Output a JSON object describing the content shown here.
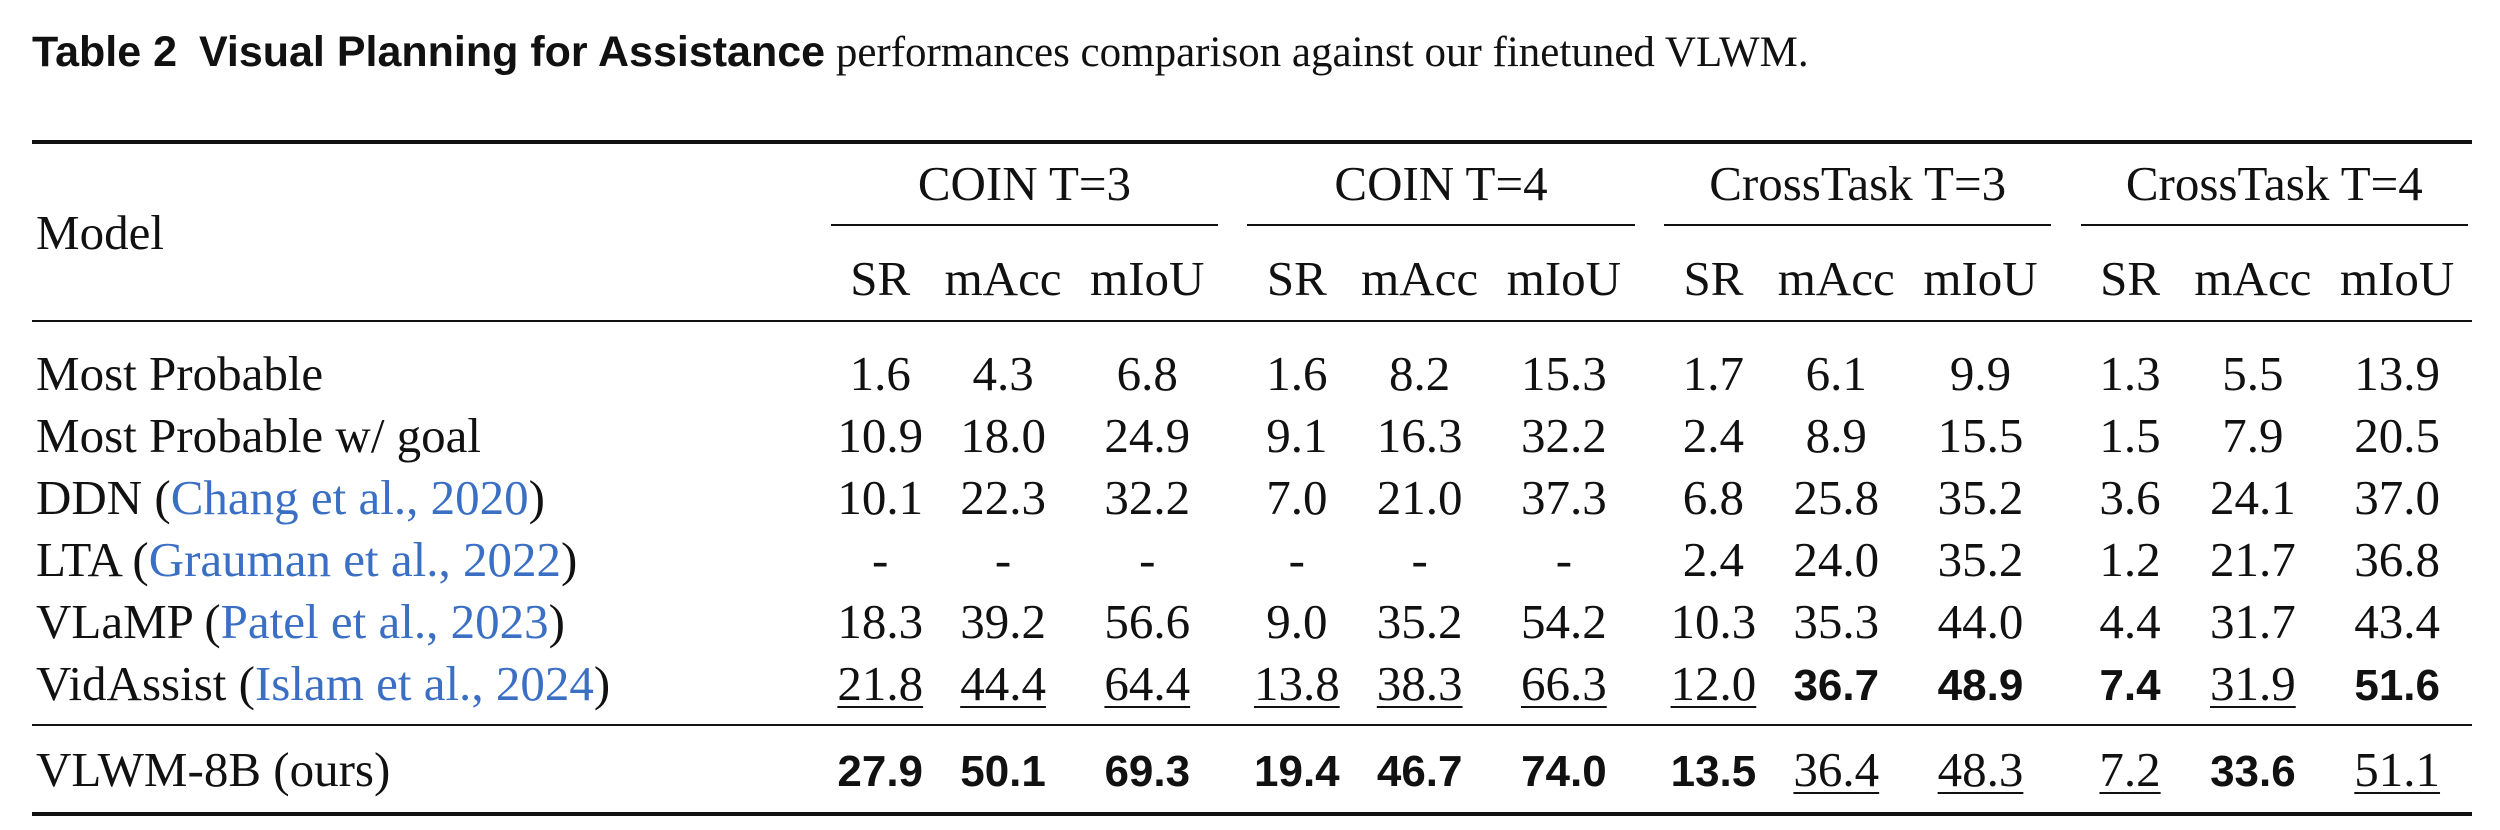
{
  "caption": {
    "label": "Table 2",
    "title": "Visual Planning for Assistance",
    "text": "performances comparison against our finetuned VLWM."
  },
  "header": {
    "model": "Model",
    "groups": [
      "COIN T=3",
      "COIN T=4",
      "CrossTask T=3",
      "CrossTask T=4"
    ],
    "metrics": [
      "SR",
      "mAcc",
      "mIoU",
      "SR",
      "mAcc",
      "mIoU",
      "SR",
      "mAcc",
      "mIoU",
      "SR",
      "mAcc",
      "mIoU"
    ]
  },
  "rows": [
    {
      "model": "Most Probable",
      "values": [
        "1.6",
        "4.3",
        "6.8",
        "1.6",
        "8.2",
        "15.3",
        "1.7",
        "6.1",
        "9.9",
        "1.3",
        "5.5",
        "13.9"
      ]
    },
    {
      "model": "Most Probable w/ goal",
      "values": [
        "10.9",
        "18.0",
        "24.9",
        "9.1",
        "16.3",
        "32.2",
        "2.4",
        "8.9",
        "15.5",
        "1.5",
        "7.9",
        "20.5"
      ]
    },
    {
      "model": "DDN",
      "cite_authors": "Chang et al.",
      "cite_year": "2020",
      "values": [
        "10.1",
        "22.3",
        "32.2",
        "7.0",
        "21.0",
        "37.3",
        "6.8",
        "25.8",
        "35.2",
        "3.6",
        "24.1",
        "37.0"
      ]
    },
    {
      "model": "LTA",
      "cite_authors": "Grauman et al.",
      "cite_year": "2022",
      "values": [
        "-",
        "-",
        "-",
        "-",
        "-",
        "-",
        "2.4",
        "24.0",
        "35.2",
        "1.2",
        "21.7",
        "36.8"
      ]
    },
    {
      "model": "VLaMP",
      "cite_authors": "Patel et al.",
      "cite_year": "2023",
      "values": [
        "18.3",
        "39.2",
        "56.6",
        "9.0",
        "35.2",
        "54.2",
        "10.3",
        "35.3",
        "44.0",
        "4.4",
        "31.7",
        "43.4"
      ]
    },
    {
      "model": "VidAssist",
      "cite_authors": "Islam et al.",
      "cite_year": "2024",
      "values": [
        "21.8",
        "44.4",
        "64.4",
        "13.8",
        "38.3",
        "66.3",
        "12.0",
        "36.7",
        "48.9",
        "7.4",
        "31.9",
        "51.6"
      ]
    },
    {
      "model": "VLWM-8B (ours)",
      "values": [
        "27.9",
        "50.1",
        "69.3",
        "19.4",
        "46.7",
        "74.0",
        "13.5",
        "36.4",
        "48.3",
        "7.2",
        "33.6",
        "51.1"
      ]
    }
  ],
  "formatting": {
    "bold_best": "r6: all COIN, CrossTask T=3 SR, CrossTask T=4 mAcc; r5: CrossTask T=3 mAcc/mIoU, CrossTask T=4 SR/mIoU",
    "underline_second": "r5: all COIN, CrossTask T=3 SR, CrossTask T=4 mAcc; r6: CrossTask T=3 mAcc/mIoU, CrossTask T=4 SR/mIoU",
    "citation_color": "#3a6fc4"
  }
}
